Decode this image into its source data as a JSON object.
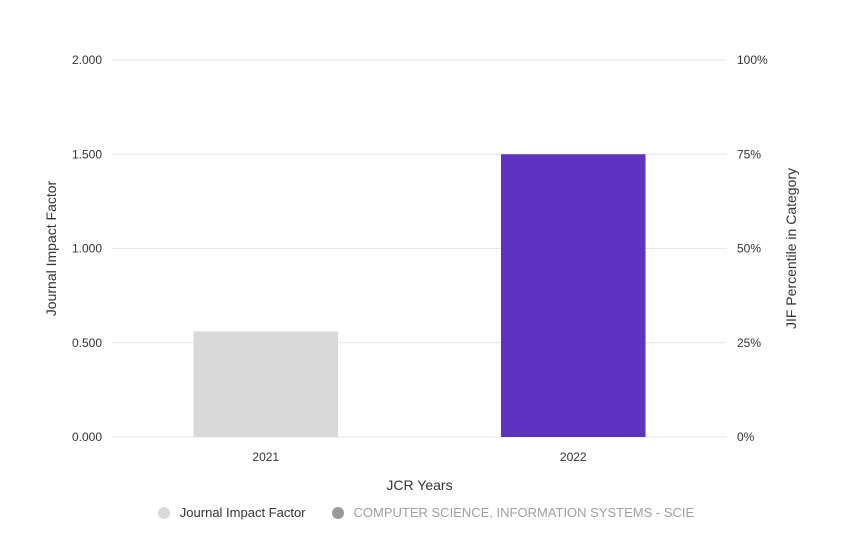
{
  "chart_data": {
    "type": "bar",
    "categories": [
      "2021",
      "2022"
    ],
    "values": [
      0.56,
      1.5
    ],
    "bar_colors": [
      "#d9d9d9",
      "#5e33c1"
    ],
    "xlabel": "JCR Years",
    "ylabel": "Journal Impact Factor",
    "ylabel_right": "JIF Percentile in Category",
    "ylim": [
      0,
      2
    ],
    "ylim_right": [
      0,
      100
    ],
    "yticks": [
      "0.000",
      "0.500",
      "1.000",
      "1.500",
      "2.000"
    ],
    "yticks_right": [
      "0%",
      "25%",
      "50%",
      "75%",
      "100%"
    ],
    "grid": true,
    "legend_position": "bottom-center"
  },
  "legend": {
    "items": [
      {
        "label": "Journal Impact Factor",
        "color": "#d9d9d9"
      },
      {
        "label": "COMPUTER SCIENCE, INFORMATION SYSTEMS - SCIE",
        "color": "#999999"
      }
    ]
  }
}
